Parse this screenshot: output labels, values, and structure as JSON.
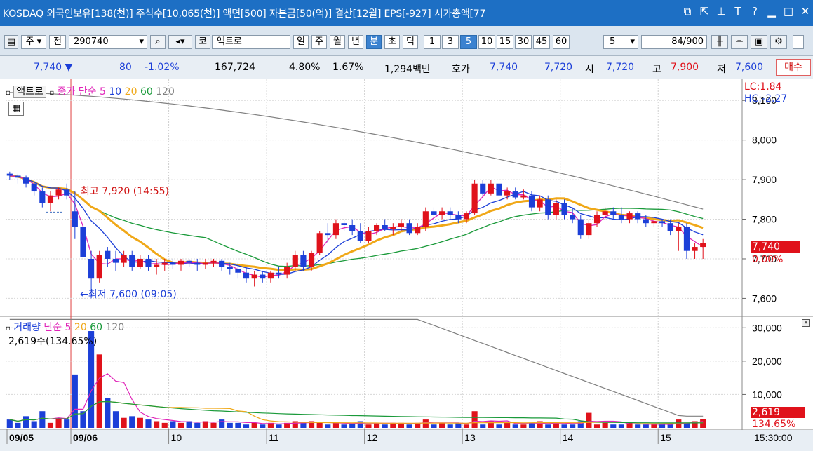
{
  "window": {
    "title": "KOSDAQ 외국인보유[138(천)] 주식수[10,065(천)] 액면[500] 자본금[50(억)] 결산[12월] EPS[-927] 시가총액[77",
    "icons": [
      "restore-icon",
      "popout-icon",
      "pin-icon",
      "font-icon",
      "help-icon",
      "minimize-icon",
      "maximize-icon",
      "close-icon"
    ]
  },
  "toolbar": {
    "period_type": "주",
    "prev_label": "전",
    "code": "290740",
    "market": "코",
    "stock_name": "액트로",
    "periods": [
      "일",
      "주",
      "월",
      "년",
      "분",
      "초",
      "틱"
    ],
    "selected_period": "분",
    "intervals": [
      "1",
      "3",
      "5",
      "10",
      "15",
      "30",
      "45",
      "60"
    ],
    "selected_interval": "5",
    "interval_select": "5",
    "count": "84",
    "total": "/900"
  },
  "quote": {
    "price": "7,740",
    "change": "80",
    "change_pct": "-1.02%",
    "volume": "167,724",
    "turnover_pct": "4.80%",
    "ratio_pct": "1.67%",
    "amount": "1,294백만",
    "hoga_label": "호가",
    "ask": "7,740",
    "bid": "7,720",
    "open_label": "시",
    "open": "7,720",
    "high_label": "고",
    "high": "7,900",
    "low_label": "저",
    "low": "7,600",
    "buy_button": "매수"
  },
  "price_panel": {
    "name": "액트로",
    "legend_prefix": "종가 단순",
    "ma_periods": [
      "5",
      "10",
      "20",
      "60",
      "120"
    ],
    "lc": "LC:1.84",
    "hc": "HC:-2.27",
    "y_ticks": [
      "8,100",
      "8,000",
      "7,900",
      "7,800",
      "7,700",
      "7,600"
    ],
    "last_tag": "7,740",
    "last_pct": "0.00%",
    "high_annot": "최고 7,920 (14:55)",
    "low_annot": "←최저 7,600 (09:05)"
  },
  "volume_panel": {
    "name": "거래량",
    "legend_prefix": "단순",
    "ma_periods": [
      "5",
      "20",
      "60",
      "120"
    ],
    "info": "2,619주(134.65%)",
    "y_ticks": [
      "30,000",
      "20,000",
      "10,000"
    ],
    "last_tag": "2,619",
    "last_pct": "134.65%"
  },
  "x_axis": {
    "labels": [
      "09/05",
      "09/06",
      "10",
      "11",
      "12",
      "13",
      "14",
      "15"
    ],
    "time": "15:30:00"
  },
  "colors": {
    "up": "#e0121b",
    "down": "#1c3fd8",
    "ma5": "#e024b8",
    "ma10": "#1c3fd8",
    "ma20": "#f0a818",
    "ma60": "#1a9a3a",
    "ma120": "#808080"
  },
  "chart_data": {
    "type": "candlestick",
    "interval": "5m",
    "price_range": [
      7560,
      8150
    ],
    "volume_range": [
      0,
      33000
    ],
    "sessions": [
      "09/05 close",
      "09/06 09:00",
      "09/06 10:00",
      "09/06 11:00",
      "09/06 12:00",
      "09/06 13:00",
      "09/06 14:00",
      "09/06 15:00"
    ],
    "candles": [
      [
        7915,
        7920,
        7900,
        7910
      ],
      [
        7910,
        7915,
        7890,
        7905
      ],
      [
        7905,
        7910,
        7880,
        7890
      ],
      [
        7890,
        7895,
        7860,
        7870
      ],
      [
        7870,
        7880,
        7830,
        7840
      ],
      [
        7840,
        7870,
        7820,
        7860
      ],
      [
        7860,
        7880,
        7850,
        7875
      ],
      [
        7875,
        7890,
        7850,
        7860
      ],
      [
        7820,
        7870,
        7750,
        7780
      ],
      [
        7780,
        7790,
        7700,
        7705
      ],
      [
        7700,
        7720,
        7600,
        7650
      ],
      [
        7650,
        7720,
        7640,
        7710
      ],
      [
        7720,
        7730,
        7680,
        7700
      ],
      [
        7700,
        7720,
        7670,
        7690
      ],
      [
        7690,
        7720,
        7680,
        7710
      ],
      [
        7710,
        7720,
        7670,
        7680
      ],
      [
        7680,
        7710,
        7675,
        7700
      ],
      [
        7700,
        7710,
        7670,
        7680
      ],
      [
        7680,
        7700,
        7660,
        7685
      ],
      [
        7685,
        7700,
        7670,
        7690
      ],
      [
        7690,
        7700,
        7675,
        7685
      ],
      [
        7685,
        7700,
        7670,
        7695
      ],
      [
        7695,
        7700,
        7680,
        7690
      ],
      [
        7690,
        7700,
        7670,
        7685
      ],
      [
        7685,
        7700,
        7675,
        7690
      ],
      [
        7690,
        7700,
        7680,
        7695
      ],
      [
        7695,
        7700,
        7670,
        7680
      ],
      [
        7680,
        7690,
        7660,
        7675
      ],
      [
        7675,
        7690,
        7650,
        7665
      ],
      [
        7665,
        7680,
        7640,
        7650
      ],
      [
        7650,
        7670,
        7630,
        7660
      ],
      [
        7660,
        7670,
        7640,
        7650
      ],
      [
        7650,
        7670,
        7640,
        7665
      ],
      [
        7665,
        7680,
        7650,
        7660
      ],
      [
        7660,
        7690,
        7650,
        7680
      ],
      [
        7680,
        7720,
        7670,
        7710
      ],
      [
        7710,
        7720,
        7670,
        7680
      ],
      [
        7680,
        7720,
        7670,
        7715
      ],
      [
        7715,
        7770,
        7710,
        7765
      ],
      [
        7765,
        7790,
        7740,
        7760
      ],
      [
        7760,
        7800,
        7750,
        7790
      ],
      [
        7790,
        7800,
        7770,
        7785
      ],
      [
        7785,
        7800,
        7760,
        7770
      ],
      [
        7770,
        7790,
        7740,
        7745
      ],
      [
        7745,
        7780,
        7740,
        7770
      ],
      [
        7770,
        7790,
        7760,
        7785
      ],
      [
        7785,
        7800,
        7770,
        7775
      ],
      [
        7775,
        7790,
        7760,
        7780
      ],
      [
        7780,
        7800,
        7770,
        7790
      ],
      [
        7790,
        7800,
        7760,
        7765
      ],
      [
        7765,
        7790,
        7760,
        7780
      ],
      [
        7780,
        7830,
        7770,
        7820
      ],
      [
        7820,
        7830,
        7800,
        7810
      ],
      [
        7810,
        7830,
        7800,
        7820
      ],
      [
        7820,
        7830,
        7800,
        7810
      ],
      [
        7810,
        7820,
        7790,
        7800
      ],
      [
        7800,
        7820,
        7790,
        7815
      ],
      [
        7815,
        7900,
        7810,
        7890
      ],
      [
        7890,
        7900,
        7860,
        7865
      ],
      [
        7865,
        7900,
        7860,
        7890
      ],
      [
        7890,
        7895,
        7850,
        7860
      ],
      [
        7860,
        7880,
        7850,
        7870
      ],
      [
        7870,
        7880,
        7850,
        7855
      ],
      [
        7855,
        7875,
        7850,
        7860
      ],
      [
        7860,
        7870,
        7820,
        7830
      ],
      [
        7830,
        7860,
        7820,
        7850
      ],
      [
        7850,
        7860,
        7800,
        7810
      ],
      [
        7810,
        7850,
        7800,
        7840
      ],
      [
        7840,
        7850,
        7800,
        7810
      ],
      [
        7810,
        7830,
        7790,
        7800
      ],
      [
        7800,
        7810,
        7750,
        7760
      ],
      [
        7760,
        7800,
        7750,
        7790
      ],
      [
        7790,
        7820,
        7780,
        7810
      ],
      [
        7810,
        7830,
        7800,
        7820
      ],
      [
        7820,
        7830,
        7800,
        7810
      ],
      [
        7810,
        7830,
        7790,
        7800
      ],
      [
        7800,
        7820,
        7790,
        7815
      ],
      [
        7815,
        7820,
        7790,
        7800
      ],
      [
        7800,
        7810,
        7780,
        7790
      ],
      [
        7790,
        7800,
        7780,
        7795
      ],
      [
        7795,
        7800,
        7780,
        7790
      ],
      [
        7790,
        7800,
        7760,
        7770
      ],
      [
        7770,
        7790,
        7720,
        7780
      ],
      [
        7780,
        7790,
        7700,
        7720
      ],
      [
        7720,
        7740,
        7700,
        7730
      ],
      [
        7730,
        7750,
        7700,
        7740
      ]
    ],
    "volumes": [
      2500,
      1500,
      3500,
      2000,
      5000,
      1500,
      3000,
      2500,
      16000,
      5000,
      29000,
      22000,
      9000,
      5000,
      3000,
      3500,
      3000,
      2500,
      2000,
      1500,
      2000,
      1500,
      2000,
      1500,
      2000,
      1500,
      2500,
      1500,
      1500,
      1000,
      1500,
      1000,
      1500,
      1000,
      1500,
      2000,
      1500,
      2000,
      1500,
      1000,
      1500,
      1000,
      1500,
      2000,
      1000,
      1500,
      1000,
      1500,
      1500,
      1000,
      1500,
      2500,
      1000,
      1500,
      1000,
      1500,
      1000,
      5000,
      1000,
      2000,
      1000,
      1500,
      1000,
      1000,
      1500,
      2000,
      1000,
      1500,
      1000,
      1000,
      2000,
      4500,
      1000,
      1500,
      1000,
      1000,
      1500,
      1000,
      1000,
      1000,
      1000,
      1000,
      2500,
      1500,
      2000,
      2619
    ]
  }
}
